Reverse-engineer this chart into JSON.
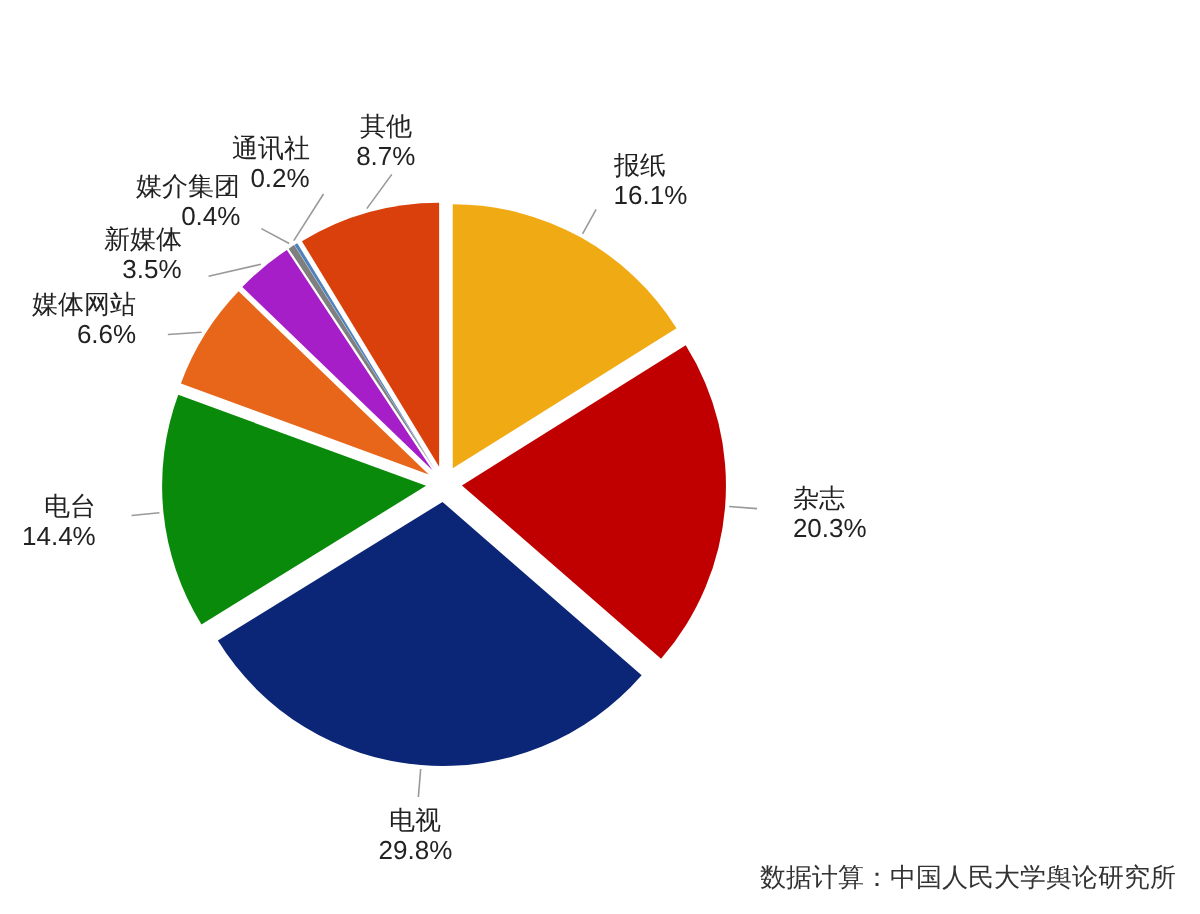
{
  "chart_data": {
    "type": "pie",
    "categories": [
      "报纸",
      "杂志",
      "电视",
      "电台",
      "媒体网站",
      "新媒体",
      "媒介集团",
      "通讯社",
      "其他"
    ],
    "values": [
      16.1,
      20.3,
      29.8,
      14.4,
      6.6,
      3.5,
      0.4,
      0.2,
      8.7
    ],
    "value_labels": [
      "16.1%",
      "20.3%",
      "29.8%",
      "14.4%",
      "6.6%",
      "3.5%",
      "0.4%",
      "0.2%",
      "8.7%"
    ],
    "colors": [
      "#f0aa14",
      "#c00000",
      "#0b2577",
      "#0a8a0a",
      "#e8661a",
      "#a61ec8",
      "#7f7f7f",
      "#4f81bd",
      "#d9400c"
    ],
    "annotations": [
      "数据计算：中国人民大学舆论研究所"
    ]
  }
}
